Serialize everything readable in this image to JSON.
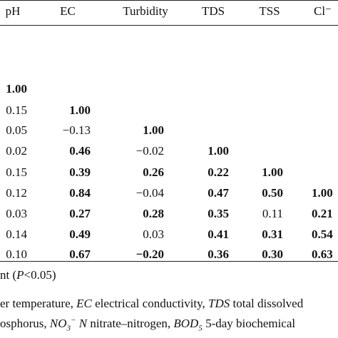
{
  "table": {
    "headers": [
      "pH",
      "EC",
      "Turbidity",
      "TDS",
      "TSS",
      "Cl⁻"
    ],
    "rows": [
      [
        "1.00",
        "",
        "",
        "",
        "",
        ""
      ],
      [
        "0.15",
        "1.00",
        "",
        "",
        "",
        ""
      ],
      [
        "0.05",
        "−0.13",
        "1.00",
        "",
        "",
        ""
      ],
      [
        "0.02",
        "0.46",
        "−0.02",
        "1.00",
        "",
        ""
      ],
      [
        "0.15",
        "0.39",
        "0.26",
        "0.22",
        "1.00",
        ""
      ],
      [
        "0.12",
        "0.84",
        "−0.04",
        "0.47",
        "0.50",
        "1.00"
      ],
      [
        "0.03",
        "0.27",
        "0.28",
        "0.35",
        "0.11",
        "0.21"
      ],
      [
        "0.14",
        "0.49",
        "0.03",
        "0.41",
        "0.31",
        "0.54"
      ],
      [
        "0.10",
        "0.67",
        "−0.20",
        "0.36",
        "0.30",
        "0.63"
      ]
    ],
    "bold": [
      [
        true,
        false,
        false,
        false,
        false,
        false
      ],
      [
        false,
        true,
        false,
        false,
        false,
        false
      ],
      [
        false,
        false,
        true,
        false,
        false,
        false
      ],
      [
        false,
        true,
        false,
        true,
        false,
        false
      ],
      [
        false,
        true,
        true,
        true,
        true,
        false
      ],
      [
        false,
        true,
        false,
        true,
        true,
        true
      ],
      [
        false,
        true,
        true,
        true,
        false,
        true
      ],
      [
        false,
        true,
        false,
        true,
        true,
        true
      ],
      [
        false,
        true,
        true,
        true,
        true,
        true
      ]
    ]
  },
  "footnotes": {
    "sig_a": "nt (",
    "sig_p": "P",
    "sig_b": "<0.05)",
    "l2_a": "er temperature, ",
    "l2_ec": "EC",
    "l2_b": " electrical conductivity, ",
    "l2_tds": "TDS",
    "l2_c": " total dissolved",
    "l3_a": "osphorus, ",
    "l3_no": "NO",
    "l3_sub": "3",
    "l3_sup": "−",
    "l3_n": " N",
    "l3_b": " nitrate–nitrogen, ",
    "l3_bod": "BOD",
    "l3_bodsub": "5",
    "l3_c": " 5-day biochemical"
  }
}
